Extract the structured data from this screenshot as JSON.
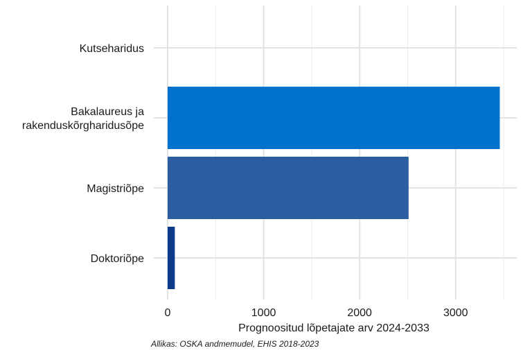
{
  "chart_data": {
    "type": "bar",
    "orientation": "horizontal",
    "categories": [
      "Kutseharidus",
      "Bakalaureus ja\nrakenduskõrgharidusõpe",
      "Magistriõpe",
      "Doktoriõpe"
    ],
    "values": [
      0,
      3460,
      2510,
      75
    ],
    "bar_colors": [
      "#0072ce",
      "#0072ce",
      "#2b5ea0",
      "#0e3a8c"
    ],
    "xlabel": "Prognoositud lõpetajate arv 2024-2033",
    "ylabel": "",
    "xlim": [
      0,
      3650
    ],
    "xticks": [
      0,
      1000,
      2000,
      3000
    ],
    "xtick_labels": [
      "0",
      "1000",
      "2000",
      "3000"
    ],
    "grid": true,
    "caption": "Allikas: OSKA andmemudel, EHIS 2018-2023"
  }
}
